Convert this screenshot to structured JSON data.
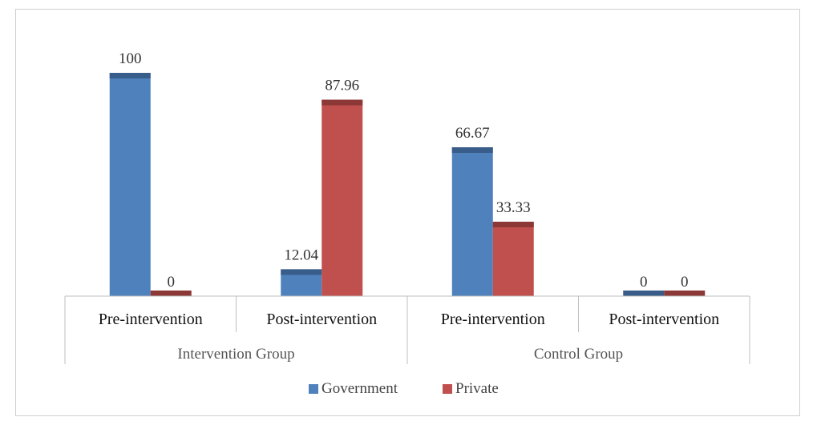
{
  "chart_data": {
    "type": "bar",
    "groups": [
      {
        "label": "Intervention Group",
        "categories": [
          "Pre-intervention",
          "Post-intervention"
        ]
      },
      {
        "label": "Control Group",
        "categories": [
          "Pre-intervention",
          "Post-intervention"
        ]
      }
    ],
    "categories": [
      "Pre-intervention",
      "Post-intervention",
      "Pre-intervention",
      "Post-intervention"
    ],
    "series": [
      {
        "name": "Government",
        "color": "#4f81bd",
        "cap_color": "#385d8a",
        "values": [
          100,
          12.04,
          66.67,
          0
        ],
        "labels": [
          "100",
          "12.04",
          "66.67",
          "0"
        ]
      },
      {
        "name": "Private",
        "color": "#c0504d",
        "cap_color": "#8c3836",
        "values": [
          0,
          87.96,
          33.33,
          0
        ],
        "labels": [
          "0",
          "87.96",
          "33.33",
          "0"
        ]
      }
    ],
    "ylim": [
      0,
      100
    ],
    "grid": false,
    "legend_position": "bottom"
  }
}
